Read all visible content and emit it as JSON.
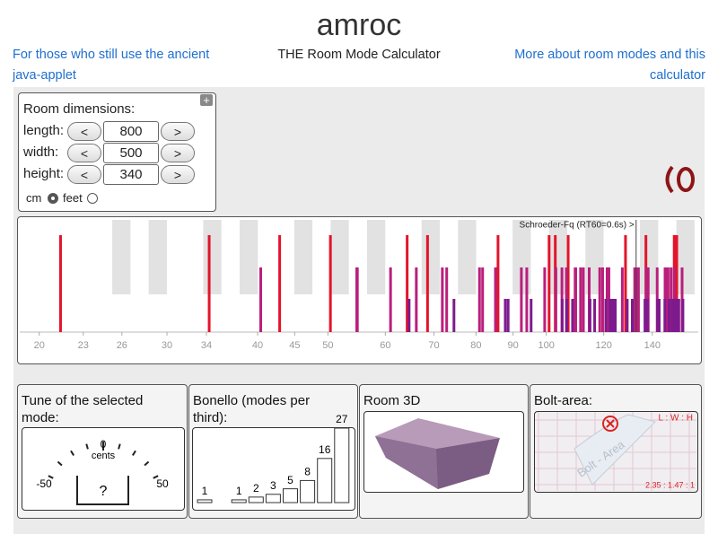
{
  "header": {
    "title": "amroc",
    "left_link": "For those who still use the ancient java-applet",
    "subtitle": "THE Room Mode Calculator",
    "right_link": "More about room modes and this calculator"
  },
  "dimensions": {
    "title": "Room dimensions:",
    "decrease": "<",
    "increase": ">",
    "rows": [
      {
        "label": "length:",
        "value": 800
      },
      {
        "label": "width:",
        "value": 500
      },
      {
        "label": "height:",
        "value": 340
      }
    ],
    "units": [
      "cm",
      "feet"
    ],
    "selected_unit": 0
  },
  "tune": {
    "title": "Tune of the selected mode:",
    "center": "0",
    "unit": "cents",
    "min": -50,
    "max": 50,
    "value": "?"
  },
  "room3d": {
    "title": "Room 3D"
  },
  "bolt": {
    "title": "Bolt-area:",
    "watermark": "Bolt - Area",
    "ratio_label": "L : W : H",
    "ratio": "2.35 : 1.47 : 1"
  },
  "chart_data": [
    {
      "type": "spike",
      "annotation": "Schroeder-Fq (RT60=0.6s) >",
      "schroeder": 133,
      "log_x": true,
      "xlim": [
        18.8,
        162
      ],
      "xticks": [
        20,
        23,
        26,
        30,
        34,
        40,
        45,
        50,
        60,
        70,
        80,
        90,
        100,
        120,
        140
      ],
      "series": [
        {
          "color": "#e3142b",
          "values": [
            21.4,
            42.9,
            64.3,
            85.8,
            107.2,
            128.6,
            150.1,
            34.3,
            68.6,
            102.9,
            137.2,
            50.4,
            100.9,
            151.3
          ]
        },
        {
          "color": "#b91f7c",
          "values": [
            40.4,
            54.9,
            72.9,
            71.9,
            80.9,
            92.4,
            94.0,
            109.8,
            105.1,
            112.5,
            111.5,
            121.3,
            127.3,
            133.1,
            134.0,
            137.3,
            142.2,
            145.8,
            148.6,
            150.1,
            153.9,
            54.8,
            66.2,
            81.7,
            99.5,
            103.1,
            109.6,
            118.5,
            119.6,
            132.4,
            138.2,
            147.2,
            61.0,
            85.1,
            106.6,
            114.6,
            122.0,
            146.2
          ]
        },
        {
          "color": "#7d1b8e",
          "values": [
            64.7,
            74.6,
            88.6,
            87.8,
            95.3,
            105.2,
            106.7,
            120.8,
            116.6,
            122.4,
            123.3,
            131.4,
            136.9,
            108.7,
            114.9,
            123.9,
            124.5,
            129.3,
            143.1,
            142.4,
            147.7,
            137.9,
            136.8,
            149.1,
            154.3,
            152.3,
            151.1,
            145.7,
            150.3
          ]
        }
      ]
    },
    {
      "type": "bar",
      "title": "Bonello (modes per third):",
      "values": [
        1,
        null,
        1,
        2,
        3,
        5,
        8,
        16,
        27
      ],
      "ylim": [
        0,
        27
      ],
      "color": "#ffffff"
    }
  ]
}
